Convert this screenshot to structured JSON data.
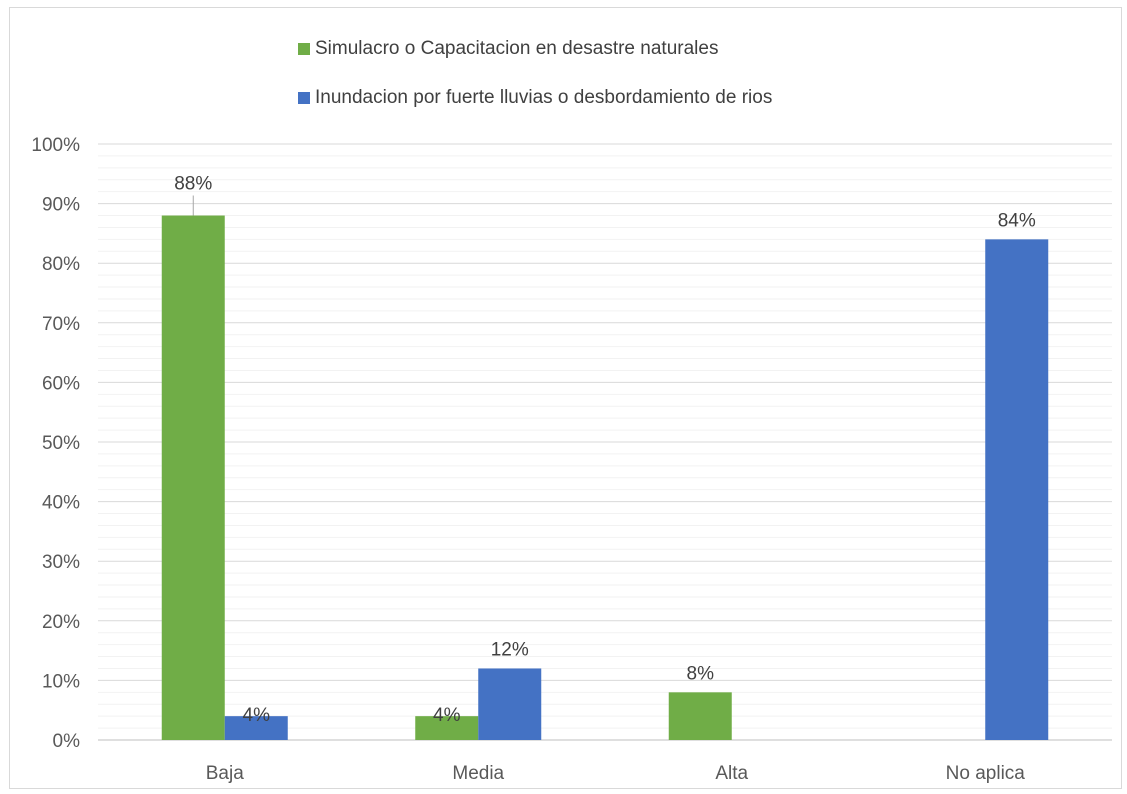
{
  "chart_data": {
    "type": "bar",
    "categories": [
      "Baja",
      "Media",
      "Alta",
      "No aplica"
    ],
    "series": [
      {
        "name": "Simulacro o Capacitacion en desastre naturales",
        "values": [
          88,
          4,
          8,
          null
        ],
        "labels": [
          "88%",
          "4%",
          "8%",
          ""
        ],
        "color": "#70ad47"
      },
      {
        "name": "Inundacion por fuerte lluvias o desbordamiento de rios",
        "values": [
          4,
          12,
          null,
          84
        ],
        "labels": [
          "4%",
          "12%",
          "",
          "84%"
        ],
        "color": "#4472c4"
      }
    ],
    "ylim": [
      0,
      100
    ],
    "yticks": [
      "0%",
      "10%",
      "20%",
      "30%",
      "40%",
      "50%",
      "60%",
      "70%",
      "80%",
      "90%",
      "100%"
    ],
    "grid": true,
    "legend_position": "top"
  }
}
